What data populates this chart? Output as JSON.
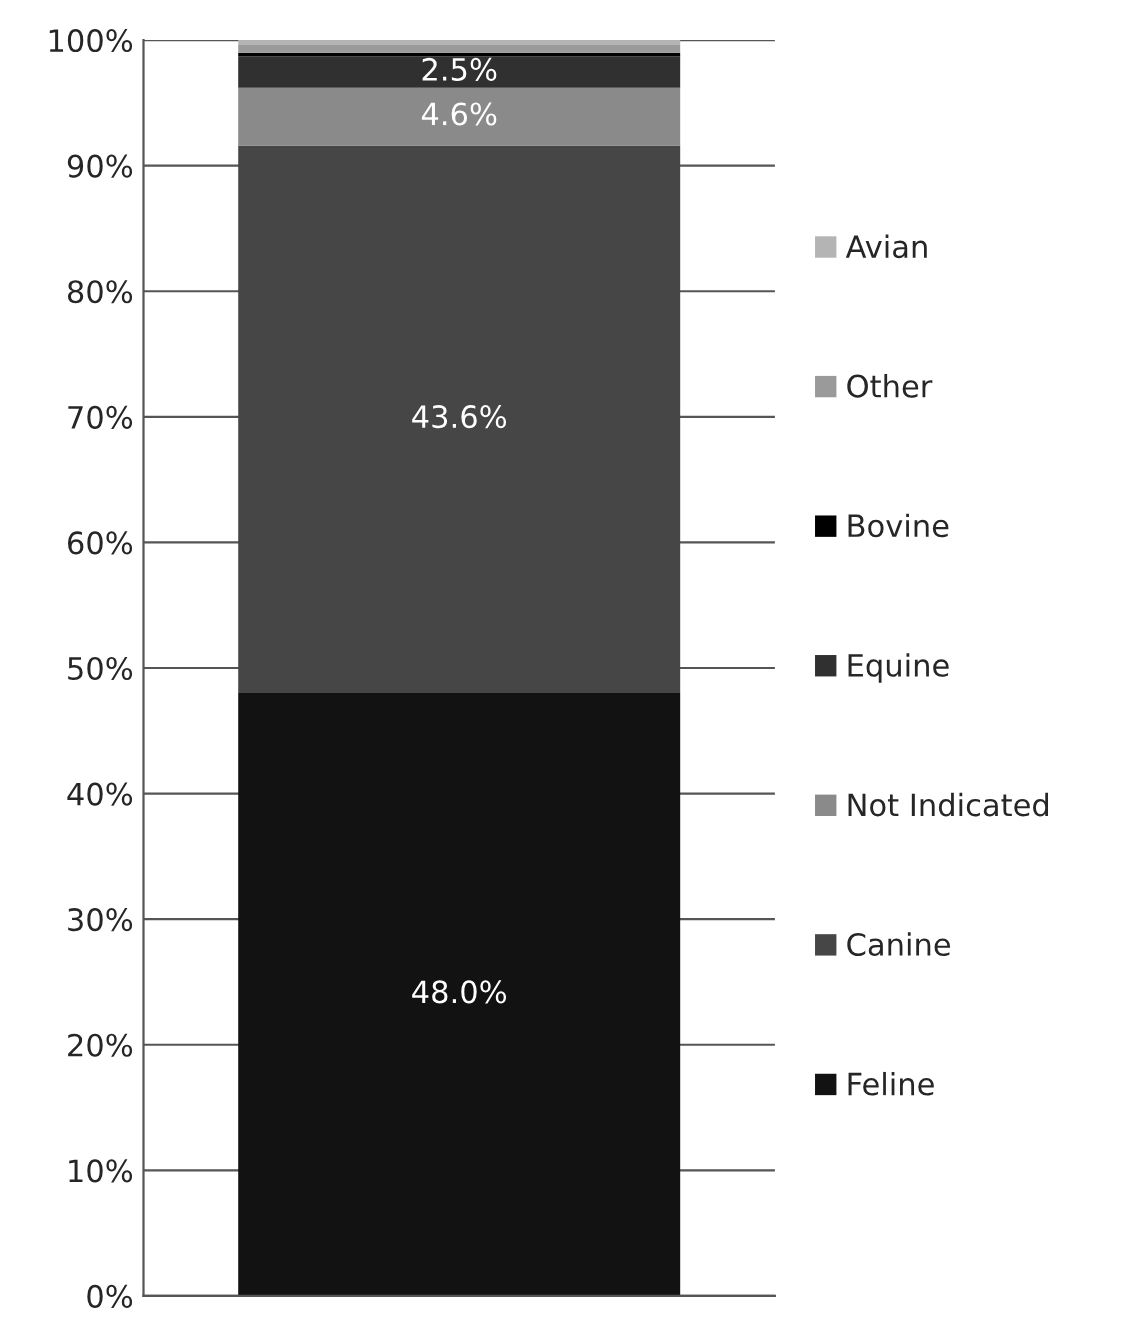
{
  "chart_data": {
    "type": "bar",
    "stacked": true,
    "categories": [
      null
    ],
    "series": [
      {
        "name": "Feline",
        "color": "#121212",
        "values": [
          48.0
        ],
        "value_labels": [
          "48.0%"
        ]
      },
      {
        "name": "Canine",
        "color": "#464646",
        "values": [
          43.6
        ],
        "value_labels": [
          "43.6%"
        ]
      },
      {
        "name": "Not Indicated",
        "color": "#8a8a8a",
        "values": [
          4.6
        ],
        "value_labels": [
          "4.6%"
        ]
      },
      {
        "name": "Equine",
        "color": "#303030",
        "values": [
          2.5
        ],
        "value_labels": [
          "2.5%"
        ]
      },
      {
        "name": "Bovine",
        "color": "#000000",
        "values": [
          0.3
        ],
        "value_labels": [
          null
        ]
      },
      {
        "name": "Other",
        "color": "#9a9a9a",
        "values": [
          0.6
        ],
        "value_labels": [
          null
        ]
      },
      {
        "name": "Avian",
        "color": "#b4b4b4",
        "values": [
          0.4
        ],
        "value_labels": [
          null
        ]
      }
    ],
    "ylim": [
      0,
      100
    ],
    "yticks": [
      {
        "value": 0,
        "label": "0%"
      },
      {
        "value": 10,
        "label": "10%"
      },
      {
        "value": 20,
        "label": "20%"
      },
      {
        "value": 30,
        "label": "30%"
      },
      {
        "value": 40,
        "label": "40%"
      },
      {
        "value": 50,
        "label": "50%"
      },
      {
        "value": 60,
        "label": "60%"
      },
      {
        "value": 70,
        "label": "70%"
      },
      {
        "value": 80,
        "label": "80%"
      },
      {
        "value": 90,
        "label": "90%"
      },
      {
        "value": 100,
        "label": "100%"
      }
    ],
    "grid": "y",
    "legend": "right"
  }
}
